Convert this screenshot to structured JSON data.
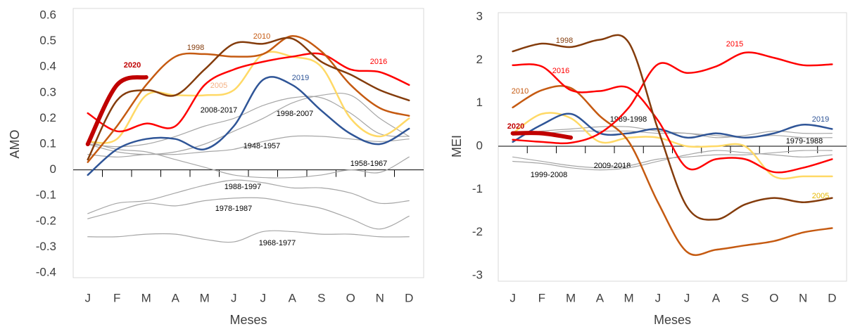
{
  "chart_data": [
    {
      "type": "line",
      "x_label": "Meses",
      "y_label": "AMO",
      "categories": [
        "J",
        "F",
        "M",
        "A",
        "M",
        "J",
        "J",
        "A",
        "S",
        "O",
        "N",
        "D"
      ],
      "ylim": [
        -0.4,
        0.6
      ],
      "yticks": [
        -0.4,
        -0.3,
        -0.2,
        -0.1,
        0,
        0.1,
        0.2,
        0.3,
        0.4,
        0.5,
        0.6
      ],
      "series": [
        {
          "name": "2008-2017",
          "color": "#a6a6a6",
          "values": [
            0.1,
            0.07,
            0.06,
            0.07,
            0.1,
            0.15,
            0.2,
            0.26,
            0.29,
            0.29,
            0.2,
            0.13
          ]
        },
        {
          "name": "1998-2007",
          "color": "#a6a6a6",
          "values": [
            0.1,
            0.09,
            0.1,
            0.13,
            0.17,
            0.2,
            0.25,
            0.28,
            0.28,
            0.22,
            0.14,
            0.13
          ]
        },
        {
          "name": "1948-1957",
          "color": "#a6a6a6",
          "values": [
            0.06,
            0.05,
            0.06,
            0.06,
            0.07,
            0.08,
            0.11,
            0.13,
            0.13,
            0.12,
            0.11,
            0.12
          ]
        },
        {
          "name": "1958-1967",
          "color": "#a6a6a6",
          "values": [
            0.11,
            0.08,
            0.07,
            0.04,
            0.01,
            -0.02,
            -0.03,
            -0.03,
            -0.02,
            0.0,
            -0.01,
            0.05
          ]
        },
        {
          "name": "1988-1997",
          "color": "#a6a6a6",
          "values": [
            -0.17,
            -0.13,
            -0.12,
            -0.09,
            -0.06,
            -0.04,
            -0.05,
            -0.07,
            -0.07,
            -0.09,
            -0.13,
            -0.12
          ]
        },
        {
          "name": "1978-1987",
          "color": "#a6a6a6",
          "values": [
            -0.19,
            -0.16,
            -0.13,
            -0.14,
            -0.12,
            -0.11,
            -0.11,
            -0.13,
            -0.15,
            -0.19,
            -0.23,
            -0.18
          ]
        },
        {
          "name": "1968-1977",
          "color": "#a6a6a6",
          "values": [
            -0.26,
            -0.26,
            -0.25,
            -0.25,
            -0.27,
            -0.28,
            -0.24,
            -0.24,
            -0.25,
            -0.25,
            -0.26,
            -0.26
          ]
        },
        {
          "name": "2005",
          "color": "#ffd966",
          "values": [
            0.11,
            0.12,
            0.29,
            0.29,
            0.29,
            0.31,
            0.45,
            0.44,
            0.4,
            0.2,
            0.13,
            0.2
          ]
        },
        {
          "name": "2019",
          "color": "#2f5597",
          "values": [
            -0.02,
            0.08,
            0.12,
            0.12,
            0.08,
            0.17,
            0.35,
            0.33,
            0.23,
            0.14,
            0.1,
            0.16
          ]
        },
        {
          "name": "2016",
          "color": "#ff0000",
          "values": [
            0.22,
            0.15,
            0.18,
            0.17,
            0.33,
            0.39,
            0.42,
            0.44,
            0.45,
            0.39,
            0.38,
            0.33
          ]
        },
        {
          "name": "2010",
          "color": "#c55a11",
          "values": [
            0.03,
            0.17,
            0.33,
            0.44,
            0.45,
            0.44,
            0.45,
            0.52,
            0.46,
            0.33,
            0.24,
            0.21
          ]
        },
        {
          "name": "1998",
          "color": "#843c0c",
          "values": [
            0.04,
            0.27,
            0.31,
            0.29,
            0.39,
            0.49,
            0.49,
            0.51,
            0.42,
            0.37,
            0.31,
            0.27
          ]
        },
        {
          "name": "2020",
          "color": "#c00000",
          "values": [
            0.1,
            0.33,
            0.36,
            null,
            null,
            null,
            null,
            null,
            null,
            null,
            null,
            null
          ]
        }
      ]
    },
    {
      "type": "line",
      "x_label": "Meses",
      "y_label": "MEI",
      "categories": [
        "J",
        "F",
        "M",
        "A",
        "M",
        "J",
        "J",
        "A",
        "S",
        "O",
        "N",
        "D"
      ],
      "ylim": [
        -3,
        3
      ],
      "yticks": [
        -3,
        -2,
        -1,
        0,
        1,
        2,
        3
      ],
      "series": [
        {
          "name": "1989-1998",
          "color": "#a6a6a6",
          "values": [
            0.25,
            0.35,
            0.4,
            0.45,
            0.45,
            0.35,
            0.3,
            0.25,
            0.2,
            0.25,
            0.2,
            0.2
          ]
        },
        {
          "name": "1979-1988",
          "color": "#a6a6a6",
          "values": [
            0.3,
            0.3,
            0.35,
            0.35,
            0.35,
            0.3,
            0.3,
            0.2,
            0.25,
            0.35,
            0.3,
            0.3
          ]
        },
        {
          "name": "2009-2018",
          "color": "#a6a6a6",
          "values": [
            -0.25,
            -0.35,
            -0.45,
            -0.5,
            -0.45,
            -0.3,
            -0.25,
            -0.2,
            -0.2,
            -0.15,
            -0.1,
            -0.1
          ]
        },
        {
          "name": "1999-2008",
          "color": "#a6a6a6",
          "values": [
            -0.35,
            -0.4,
            -0.5,
            -0.55,
            -0.5,
            -0.35,
            -0.2,
            -0.1,
            -0.15,
            -0.2,
            -0.25,
            -0.2
          ]
        },
        {
          "name": "2005",
          "color": "#ffd966",
          "values": [
            0.3,
            0.75,
            0.65,
            0.1,
            0.2,
            0.2,
            0.0,
            0.0,
            0.0,
            -0.7,
            -0.7,
            -0.7
          ]
        },
        {
          "name": "2019",
          "color": "#2f5597",
          "values": [
            0.1,
            0.5,
            0.75,
            0.3,
            0.3,
            0.4,
            0.2,
            0.3,
            0.2,
            0.3,
            0.5,
            0.4
          ]
        },
        {
          "name": "2010",
          "color": "#c55a11",
          "values": [
            0.9,
            1.3,
            1.35,
            0.7,
            0.1,
            -1.3,
            -2.45,
            -2.4,
            -2.3,
            -2.2,
            -2.0,
            -1.9
          ]
        },
        {
          "name": "2016",
          "color": "#ff0000",
          "values": [
            1.88,
            1.85,
            1.3,
            1.28,
            1.35,
            0.6,
            -0.5,
            -0.3,
            -0.3,
            -0.6,
            -0.5,
            -0.3
          ]
        },
        {
          "name": "2015",
          "color": "#ff0000",
          "values": [
            0.15,
            0.1,
            0.08,
            0.3,
            0.9,
            1.9,
            1.7,
            1.85,
            2.17,
            2.05,
            1.88,
            1.9
          ]
        },
        {
          "name": "1998",
          "color": "#843c0c",
          "values": [
            2.2,
            2.38,
            2.3,
            2.47,
            2.4,
            0.4,
            -1.4,
            -1.7,
            -1.35,
            -1.2,
            -1.3,
            -1.2
          ]
        },
        {
          "name": "2020",
          "color": "#c00000",
          "values": [
            0.3,
            0.3,
            0.2,
            null,
            null,
            null,
            null,
            null,
            null,
            null,
            null,
            null
          ]
        }
      ]
    }
  ]
}
